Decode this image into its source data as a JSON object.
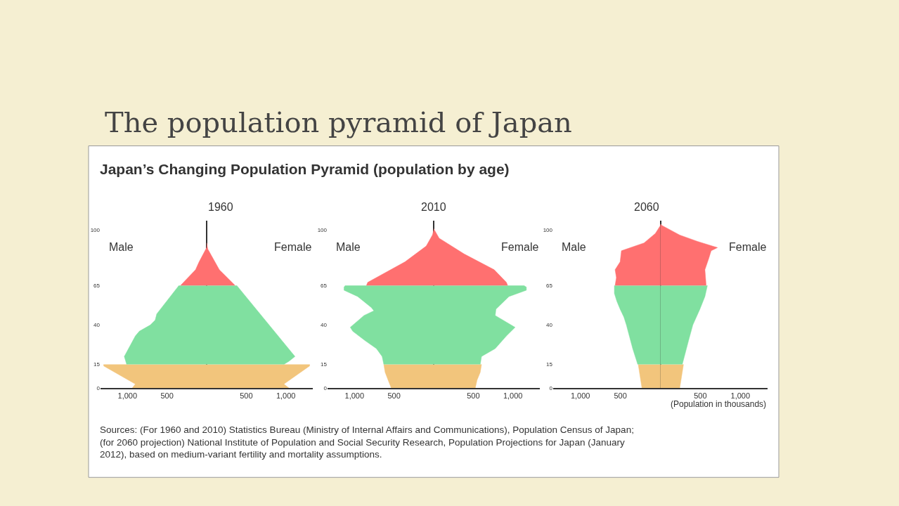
{
  "chart_data": [
    {
      "type": "area",
      "orientation": "horizontal",
      "title": "1960",
      "annotations": [
        "Male",
        "Female",
        "The population pyramid of Japan",
        "Japan’s Changing Population Pyramid (population by age)"
      ],
      "xlim": [
        -1340,
        1340
      ],
      "xticks": [
        {
          "value": -1000,
          "label": "1,000"
        },
        {
          "value": -500,
          "label": "500"
        },
        500,
        {
          "value": 1000,
          "label": "1,000"
        }
      ],
      "ylim": [
        0,
        106
      ],
      "yticks": [
        0,
        15,
        40,
        65,
        100
      ],
      "series": [
        {
          "color": "#f2c57c",
          "x": [
            0,
            2.5,
            14,
            15
          ],
          "values": [
            -940,
            -900,
            -1300,
            -1300
          ]
        },
        {
          "color": "#80e0a0",
          "x": [
            15,
            20,
            33,
            36,
            40,
            43,
            47,
            65
          ],
          "values": [
            -1010,
            -1040,
            -900,
            -850,
            -710,
            -650,
            -630,
            -350
          ]
        },
        {
          "color": "#ff7070",
          "x": [
            65,
            75,
            80,
            89
          ],
          "values": [
            -330,
            -140,
            -95,
            0
          ]
        },
        {
          "color": "#f2c57c",
          "x": [
            0,
            2.5,
            14,
            15
          ],
          "values": [
            1040,
            975,
            1300,
            1300
          ]
        },
        {
          "color": "#80e0a0",
          "x": [
            15,
            17,
            20,
            65
          ],
          "values": [
            975,
            1040,
            1115,
            380
          ]
        },
        {
          "color": "#ff7070",
          "x": [
            65,
            75,
            88,
            92
          ],
          "values": [
            360,
            160,
            15,
            0
          ]
        }
      ]
    },
    {
      "type": "area",
      "orientation": "horizontal",
      "title": "2010",
      "annotations": [
        "Male",
        "Female"
      ],
      "xlim": [
        -1340,
        1340
      ],
      "xticks": [
        {
          "value": -1000,
          "label": "1,000"
        },
        {
          "value": -500,
          "label": "500"
        },
        500,
        {
          "value": 1000,
          "label": "1,000"
        }
      ],
      "ylim": [
        0,
        106
      ],
      "yticks": [
        0,
        15,
        40,
        65,
        100
      ],
      "series": [
        {
          "color": "#f2c57c",
          "x": [
            0,
            5,
            10,
            15
          ],
          "values": [
            -535,
            -575,
            -613,
            -630
          ]
        },
        {
          "color": "#80e0a0",
          "x": [
            15,
            20,
            25,
            30,
            36,
            38.5,
            46,
            49,
            51,
            58,
            62,
            64,
            65
          ],
          "values": [
            -630,
            -651,
            -723,
            -865,
            -1022,
            -1053,
            -880,
            -755,
            -786,
            -959,
            -1132,
            -1132,
            -1116
          ]
        },
        {
          "color": "#ff7070",
          "x": [
            65,
            67,
            80,
            90,
            97,
            100
          ],
          "values": [
            -849,
            -833,
            -362,
            -94,
            -16,
            0
          ]
        },
        {
          "color": "#f2c57c",
          "x": [
            0,
            5,
            10,
            15
          ],
          "values": [
            525,
            547,
            588,
            604
          ]
        },
        {
          "color": "#80e0a0",
          "x": [
            15,
            20,
            25,
            33,
            38.5,
            46,
            50,
            58,
            62,
            64,
            65
          ],
          "values": [
            588,
            604,
            777,
            918,
            1028,
            777,
            786,
            950,
            1170,
            1170,
            1138
          ]
        },
        {
          "color": "#ff7070",
          "x": [
            65,
            67,
            75,
            85,
            95,
            101
          ],
          "values": [
            934,
            918,
            764,
            384,
            69,
            0
          ]
        }
      ]
    },
    {
      "type": "area",
      "orientation": "horizontal",
      "title": "2060",
      "xlabel": "(Population in thousands)",
      "annotations": [
        "Male",
        "Female",
        "Sources: (For 1960 and 2010) Statistics Bureau (Ministry of Internal Affairs and Communications), Population Census of Japan; (for 2060 projection) National Institute of Population and Social Security Research, Population Projections for Japan (January 2012), based on medium-variant fertility and mortality assumptions."
      ],
      "xlim": [
        -1340,
        1340
      ],
      "xticks": [
        {
          "value": -1000,
          "label": "1,000"
        },
        {
          "value": -500,
          "label": "500"
        },
        500,
        {
          "value": 1000,
          "label": "1,000"
        }
      ],
      "ylim": [
        0,
        106
      ],
      "yticks": [
        0,
        15,
        40,
        65,
        100
      ],
      "series": [
        {
          "color": "#f2c57c",
          "x": [
            0,
            15
          ],
          "values": [
            -230,
            -277
          ]
        },
        {
          "color": "#80e0a0",
          "x": [
            15,
            25,
            40,
            45,
            50,
            55,
            60,
            65
          ],
          "values": [
            -283,
            -346,
            -425,
            -456,
            -503,
            -544,
            -575,
            -575
          ]
        },
        {
          "color": "#ff7070",
          "x": [
            65,
            70,
            75,
            80,
            87,
            92,
            98,
            103
          ],
          "values": [
            -566,
            -550,
            -566,
            -503,
            -487,
            -204,
            -63,
            0
          ]
        },
        {
          "color": "#f2c57c",
          "x": [
            0,
            15
          ],
          "values": [
            242,
            289
          ]
        },
        {
          "color": "#80e0a0",
          "x": [
            15,
            30,
            40,
            50,
            58,
            65
          ],
          "values": [
            274,
            352,
            406,
            494,
            557,
            588
          ]
        },
        {
          "color": "#ff7070",
          "x": [
            65,
            75,
            82,
            87,
            89,
            93,
            97,
            103,
            104
          ],
          "values": [
            572,
            557,
            604,
            635,
            714,
            462,
            242,
            22,
            0
          ]
        }
      ]
    }
  ]
}
